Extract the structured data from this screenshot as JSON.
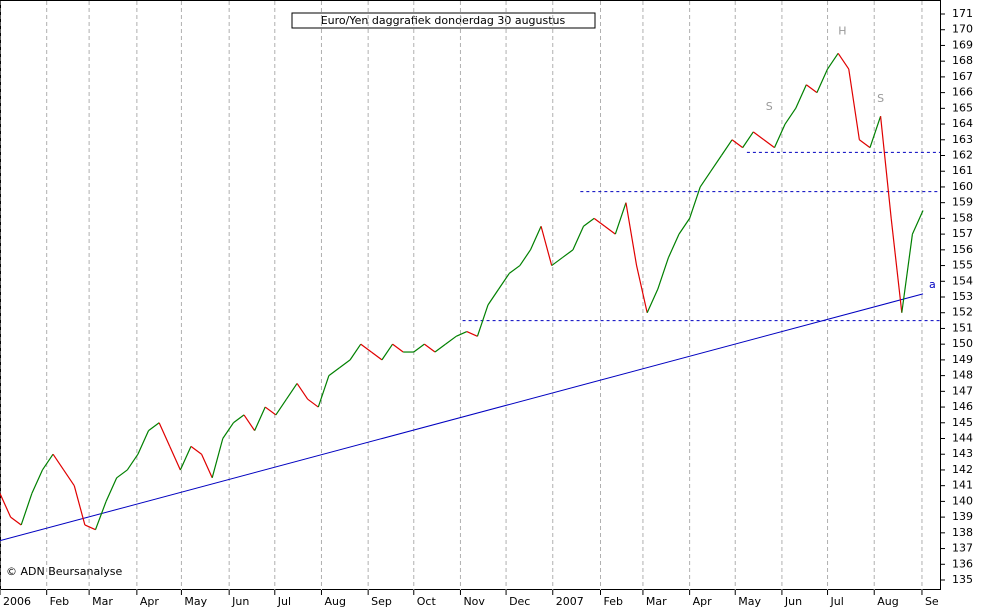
{
  "chart_data": {
    "type": "line",
    "title": "Euro/Yen daggrafiek donderdag 30 augustus",
    "source": "© ADN Beursanalyse",
    "up_color": "#008000",
    "down_color": "#e00000",
    "x": [
      0,
      1,
      2,
      3,
      4,
      5,
      6,
      7,
      8,
      9,
      10,
      11,
      12,
      13,
      14,
      15,
      16,
      17,
      18,
      19,
      20,
      21,
      22,
      23,
      24,
      25,
      26,
      27,
      28,
      29,
      30,
      31,
      32,
      33,
      34,
      35,
      36,
      37,
      38,
      39,
      40,
      41,
      42,
      43,
      44,
      45,
      46,
      47,
      48,
      49,
      50,
      51,
      52,
      53,
      54,
      55,
      56,
      57,
      58,
      59,
      60,
      61,
      62,
      63,
      64,
      65,
      66,
      67,
      68,
      69,
      70,
      71,
      72,
      73,
      74,
      75,
      76,
      77,
      78,
      79,
      80,
      81,
      82,
      83,
      84,
      85,
      86,
      87
    ],
    "values": [
      140.5,
      139,
      138.5,
      140.5,
      142,
      143,
      142,
      141,
      138.5,
      138.2,
      140,
      141.5,
      142,
      143,
      144.5,
      145,
      143.5,
      142,
      143.5,
      143,
      141.5,
      144,
      145,
      145.5,
      144.5,
      146,
      145.5,
      146.5,
      147.5,
      146.5,
      146,
      148,
      148.5,
      149,
      150,
      149.5,
      149,
      150,
      149.5,
      149.5,
      150,
      149.5,
      150,
      150.5,
      150.8,
      150.5,
      152.5,
      153.5,
      154.5,
      155,
      156,
      157.5,
      155,
      155.5,
      156,
      157.5,
      158,
      157.5,
      157,
      159,
      155,
      152,
      153.5,
      155.5,
      157,
      158,
      160,
      161,
      162,
      163,
      162.5,
      163.5,
      163,
      162.5,
      164,
      165,
      166.5,
      166,
      167.5,
      168.5,
      167.5,
      163,
      162.5,
      164.5,
      158,
      152,
      157,
      158.5
    ],
    "xlim": [
      0,
      88.6
    ],
    "xticks": [
      {
        "value": 0,
        "label": "2006"
      },
      {
        "value": 4.4,
        "label": "Feb"
      },
      {
        "value": 8.4,
        "label": "Mar"
      },
      {
        "value": 12.9,
        "label": "Apr"
      },
      {
        "value": 17.1,
        "label": "May"
      },
      {
        "value": 21.6,
        "label": "Jun"
      },
      {
        "value": 25.9,
        "label": "Jul"
      },
      {
        "value": 30.3,
        "label": "Aug"
      },
      {
        "value": 34.7,
        "label": "Sep"
      },
      {
        "value": 39,
        "label": "Oct"
      },
      {
        "value": 43.4,
        "label": "Nov"
      },
      {
        "value": 47.7,
        "label": "Dec"
      },
      {
        "value": 52.1,
        "label": "2007"
      },
      {
        "value": 56.6,
        "label": "Feb"
      },
      {
        "value": 60.6,
        "label": "Mar"
      },
      {
        "value": 65,
        "label": "Apr"
      },
      {
        "value": 69.3,
        "label": "May"
      },
      {
        "value": 73.7,
        "label": "Jun"
      },
      {
        "value": 78,
        "label": "Jul"
      },
      {
        "value": 82.4,
        "label": "Aug"
      },
      {
        "value": 86.9,
        "label": "Se"
      }
    ],
    "ylim": [
      135,
      171
    ],
    "yticks": [
      135,
      136,
      137,
      138,
      139,
      140,
      141,
      142,
      143,
      144,
      145,
      146,
      147,
      148,
      149,
      150,
      151,
      152,
      153,
      154,
      155,
      156,
      157,
      158,
      159,
      160,
      161,
      162,
      163,
      164,
      165,
      166,
      167,
      168,
      169,
      170,
      171
    ],
    "grid": true,
    "trendline": {
      "start": [
        0,
        137.5
      ],
      "end": [
        87,
        153.2
      ],
      "label": "a",
      "color": "#0000c0"
    },
    "reference_lines": [
      {
        "value": 151.5,
        "from": 43.6
      },
      {
        "value": 159.7,
        "from": 54.7
      },
      {
        "value": 162.2,
        "from": 70.4
      }
    ],
    "pattern_labels": [
      {
        "text": "S",
        "x": 72.5,
        "y": 165.1
      },
      {
        "text": "H",
        "x": 79.4,
        "y": 169.9
      },
      {
        "text": "S",
        "x": 83,
        "y": 165.6
      }
    ]
  }
}
